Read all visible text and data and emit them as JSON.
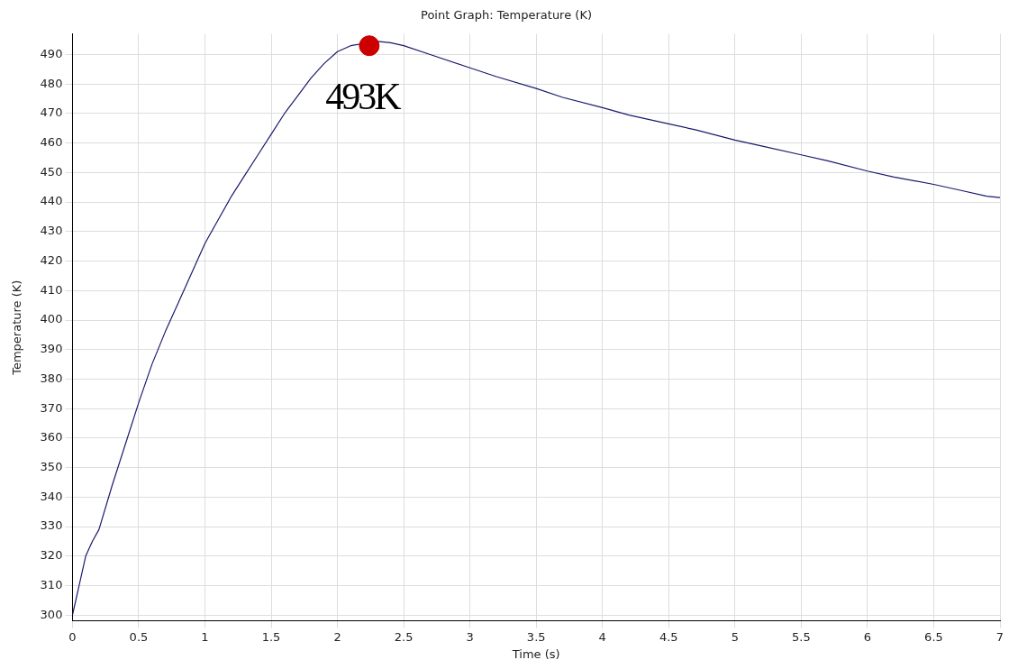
{
  "chart_data": {
    "type": "line",
    "title": "Point Graph: Temperature (K)",
    "xlabel": "Time (s)",
    "ylabel": "Temperature (K)",
    "xlim": [
      0,
      7
    ],
    "xticks": [
      0,
      0.5,
      1,
      1.5,
      2,
      2.5,
      3,
      3.5,
      4,
      4.5,
      5,
      5.5,
      6,
      6.5,
      7
    ],
    "ylim": [
      298,
      497
    ],
    "yticks": [
      300,
      310,
      320,
      330,
      340,
      350,
      360,
      370,
      380,
      390,
      400,
      410,
      420,
      430,
      440,
      450,
      460,
      470,
      480,
      490
    ],
    "grid": true,
    "legend": false,
    "series": [
      {
        "type": "line",
        "color": "#1a1a6e",
        "marker": "none",
        "x": [
          0,
          0.05,
          0.1,
          0.15,
          0.2,
          0.3,
          0.4,
          0.5,
          0.6,
          0.7,
          0.8,
          0.9,
          1,
          1.1,
          1.2,
          1.3,
          1.4,
          1.5,
          1.6,
          1.7,
          1.8,
          1.9,
          2,
          2.1,
          2.3,
          2.4,
          2.5,
          2.7,
          3,
          3.2,
          3.5,
          3.7,
          4,
          4.2,
          4.5,
          4.7,
          5,
          5.2,
          5.5,
          5.7,
          6,
          6.2,
          6.5,
          6.7,
          6.9,
          7
        ],
        "values": [
          300,
          310,
          320,
          325,
          329,
          344,
          358,
          372,
          385,
          396,
          406,
          416,
          426,
          434,
          442,
          449,
          456,
          463,
          470,
          476,
          482,
          487,
          491,
          493,
          494.5,
          494,
          493,
          490,
          485.5,
          482.5,
          478.5,
          475.5,
          472,
          469.5,
          466.5,
          464.5,
          461,
          459,
          456,
          454,
          450.5,
          448.5,
          446,
          444,
          442,
          441.5
        ]
      },
      {
        "type": "scatter",
        "color": "#cc0000",
        "marker": "circle",
        "x": [
          2.24
        ],
        "values": [
          493
        ]
      }
    ],
    "annotations": [
      {
        "text": "493K",
        "x": 2.24,
        "y": 493
      }
    ]
  }
}
